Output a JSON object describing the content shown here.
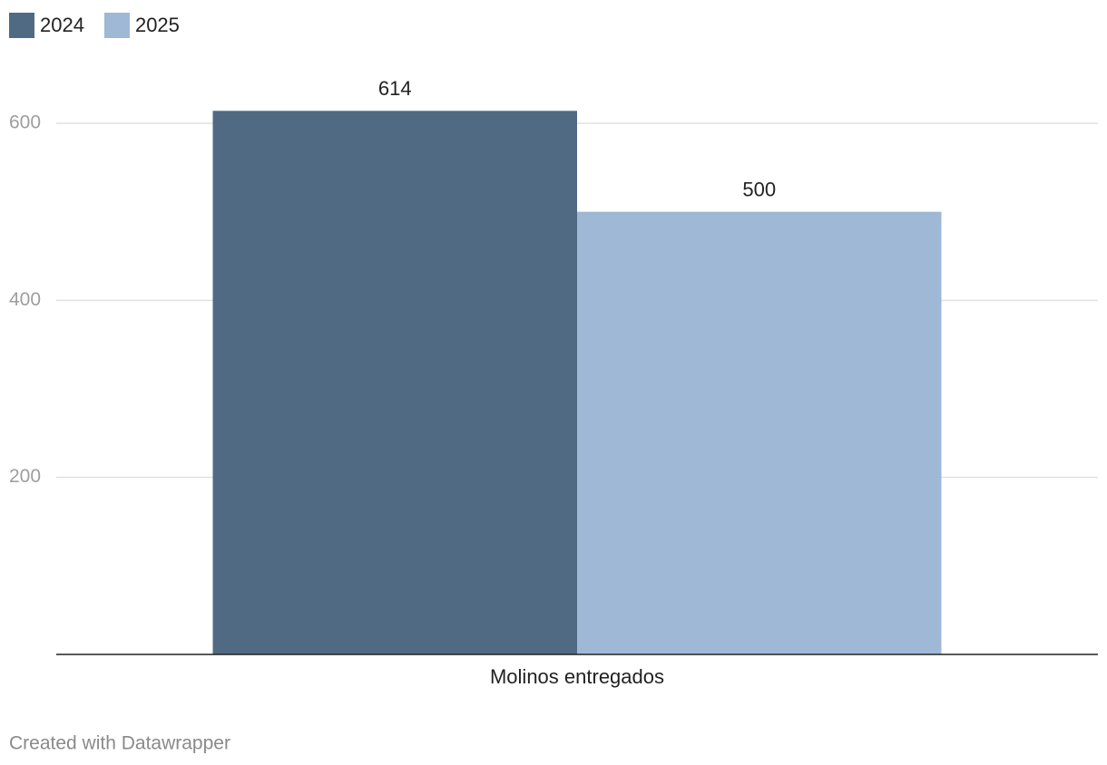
{
  "chart_data": {
    "type": "bar",
    "categories": [
      "Molinos entregados"
    ],
    "series": [
      {
        "name": "2024",
        "color": "#506a84",
        "values": [
          614
        ]
      },
      {
        "name": "2025",
        "color": "#9eb8d5",
        "values": [
          500
        ]
      }
    ],
    "ylim": [
      0,
      614
    ],
    "yticks": [
      200,
      400,
      600
    ],
    "grid": true,
    "credit": "Created with Datawrapper"
  }
}
